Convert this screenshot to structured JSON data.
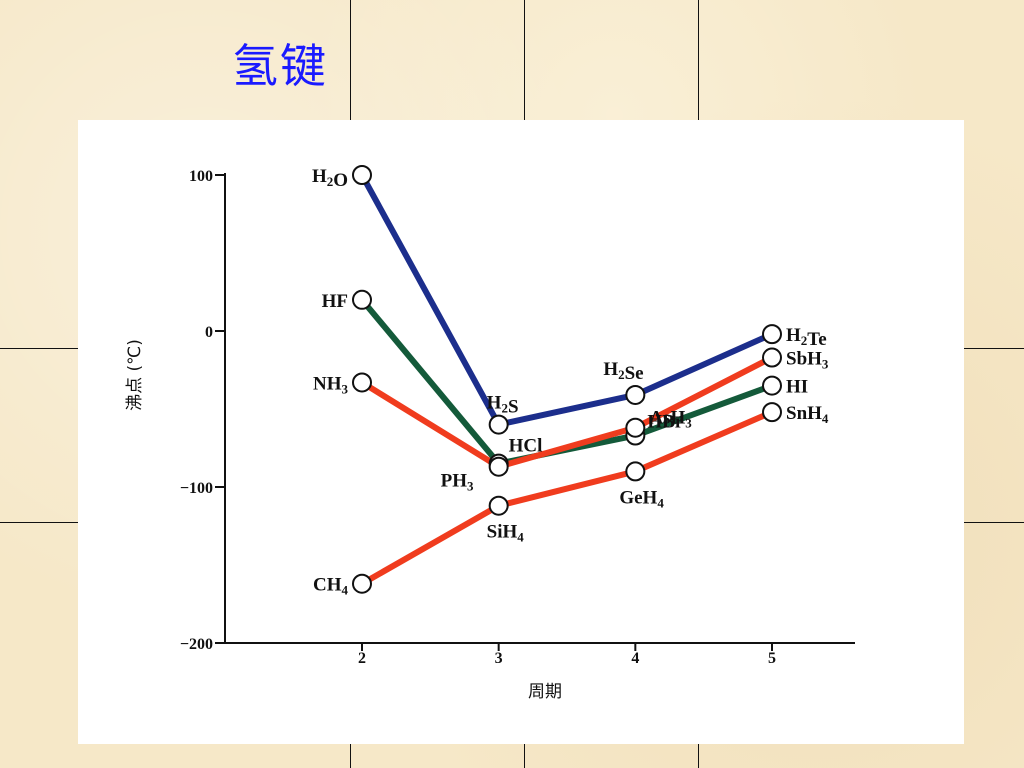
{
  "slide": {
    "title": "氢键"
  },
  "chart_data": {
    "type": "line",
    "title": "",
    "xlabel": "周期",
    "ylabel": "沸点 (℃)",
    "x": [
      2,
      3,
      4,
      5
    ],
    "xlim": [
      1.0,
      5.5
    ],
    "ylim": [
      -200,
      100
    ],
    "xticks": [
      2,
      3,
      4,
      5
    ],
    "yticks": [
      100,
      0,
      -100,
      -200
    ],
    "ytick_labels": [
      "100",
      "0",
      "−100",
      "−200"
    ],
    "grid": false,
    "legend": "none",
    "series": [
      {
        "color": "#1c2e8c",
        "values": [
          100,
          -60,
          -41,
          -2
        ],
        "labels": [
          "H2O",
          "H2S",
          "H2Se",
          "H2Te"
        ]
      },
      {
        "color": "#145a3a",
        "values": [
          20,
          -85,
          -67,
          -35
        ],
        "labels": [
          "HF",
          "HCl",
          "HBr",
          "HI"
        ]
      },
      {
        "color": "#f03c1e",
        "values": [
          -33,
          -87,
          -62,
          -17
        ],
        "labels": [
          "NH3",
          "PH3",
          "AsH3",
          "SbH3"
        ]
      },
      {
        "color": "#f03c1e",
        "values": [
          -162,
          -112,
          -90,
          -52
        ],
        "labels": [
          "CH4",
          "SiH4",
          "GeH4",
          "SnH4"
        ]
      }
    ]
  }
}
